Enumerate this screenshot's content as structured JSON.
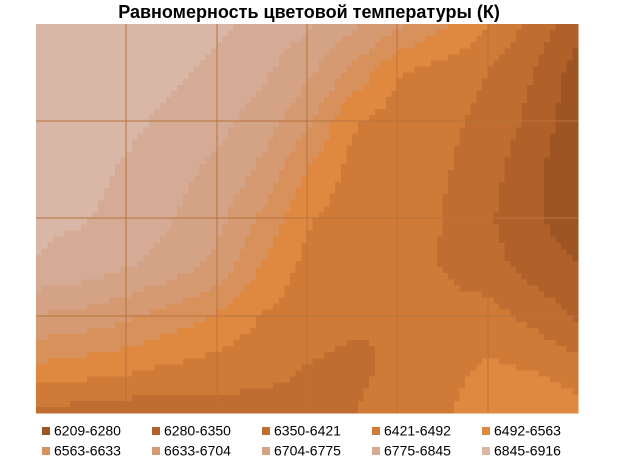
{
  "chart_data": {
    "type": "contour",
    "title": "Равномерность цветовой температуры (К)",
    "bands": [
      {
        "label": "6209-6280",
        "min": 6209,
        "max": 6280,
        "color": "#9e5523"
      },
      {
        "label": "6280-6350",
        "min": 6280,
        "max": 6350,
        "color": "#b0612a"
      },
      {
        "label": "6350-6421",
        "min": 6350,
        "max": 6421,
        "color": "#c06d31"
      },
      {
        "label": "6421-6492",
        "min": 6421,
        "max": 6492,
        "color": "#d07a37"
      },
      {
        "label": "6492-6563",
        "min": 6492,
        "max": 6563,
        "color": "#de8840"
      },
      {
        "label": "6563-6633",
        "min": 6563,
        "max": 6633,
        "color": "#d9915c"
      },
      {
        "label": "6633-6704",
        "min": 6633,
        "max": 6704,
        "color": "#d69a72"
      },
      {
        "label": "6704-6775",
        "min": 6704,
        "max": 6775,
        "color": "#d4a285"
      },
      {
        "label": "6775-6845",
        "min": 6775,
        "max": 6845,
        "color": "#d5ab95"
      },
      {
        "label": "6845-6916",
        "min": 6845,
        "max": 6916,
        "color": "#d8b7a6"
      }
    ],
    "z": [
      [
        6880,
        6890,
        6900,
        6880,
        6860,
        6820,
        6790,
        6720,
        6650,
        6580,
        6500,
        6400,
        6300
      ],
      [
        6870,
        6880,
        6880,
        6860,
        6830,
        6790,
        6720,
        6620,
        6500,
        6460,
        6420,
        6350,
        6250
      ],
      [
        6860,
        6870,
        6860,
        6830,
        6800,
        6740,
        6650,
        6500,
        6460,
        6440,
        6400,
        6330,
        6230
      ],
      [
        6850,
        6860,
        6840,
        6800,
        6760,
        6690,
        6560,
        6470,
        6450,
        6430,
        6380,
        6300,
        6220
      ],
      [
        6860,
        6850,
        6830,
        6780,
        6730,
        6620,
        6500,
        6460,
        6440,
        6420,
        6360,
        6290,
        6240
      ],
      [
        6840,
        6820,
        6780,
        6740,
        6680,
        6560,
        6470,
        6450,
        6430,
        6420,
        6380,
        6320,
        6280
      ],
      [
        6700,
        6680,
        6650,
        6600,
        6560,
        6490,
        6450,
        6430,
        6420,
        6440,
        6450,
        6400,
        6340
      ],
      [
        6560,
        6540,
        6520,
        6490,
        6470,
        6440,
        6420,
        6410,
        6430,
        6460,
        6500,
        6480,
        6440
      ],
      [
        6400,
        6390,
        6380,
        6370,
        6390,
        6400,
        6410,
        6420,
        6440,
        6480,
        6540,
        6560,
        6520
      ]
    ]
  }
}
